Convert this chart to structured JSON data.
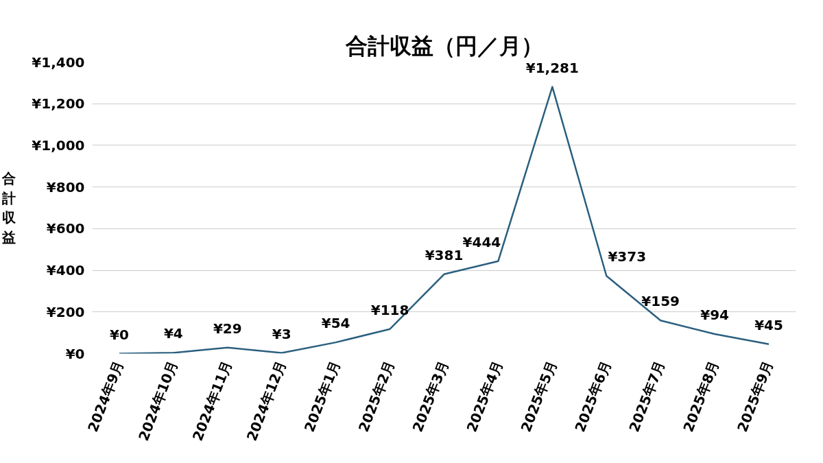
{
  "chart_data": {
    "type": "line",
    "title": "合計収益（円／月）",
    "ylabel": "合計収益",
    "categories": [
      "2024年9月",
      "2024年10月",
      "2024年11月",
      "2024年12月",
      "2025年1月",
      "2025年2月",
      "2025年3月",
      "2025年4月",
      "2025年5月",
      "2025年6月",
      "2025年7月",
      "2025年8月",
      "2025年9月"
    ],
    "series": [
      {
        "color": "#2a5f7f",
        "values": [
          0,
          4,
          29,
          3,
          54,
          118,
          381,
          444,
          1281,
          373,
          159,
          94,
          45
        ],
        "value_labels": [
          "¥0",
          "¥4",
          "¥29",
          "¥3",
          "¥54",
          "¥118",
          "¥381",
          "¥444",
          "¥1,281",
          "¥373",
          "¥159",
          "¥94",
          "¥45"
        ]
      }
    ],
    "ylim": [
      0,
      1400
    ],
    "yticks": [
      {
        "value": 0,
        "label": "¥0"
      },
      {
        "value": 200,
        "label": "¥200"
      },
      {
        "value": 400,
        "label": "¥400"
      },
      {
        "value": 600,
        "label": "¥600"
      },
      {
        "value": 800,
        "label": "¥800"
      },
      {
        "value": 1000,
        "label": "¥1,000"
      },
      {
        "value": 1200,
        "label": "¥1,200"
      },
      {
        "value": 1400,
        "label": "¥1,400"
      }
    ],
    "grid": "y",
    "marker": "none",
    "line_style": "solid"
  }
}
